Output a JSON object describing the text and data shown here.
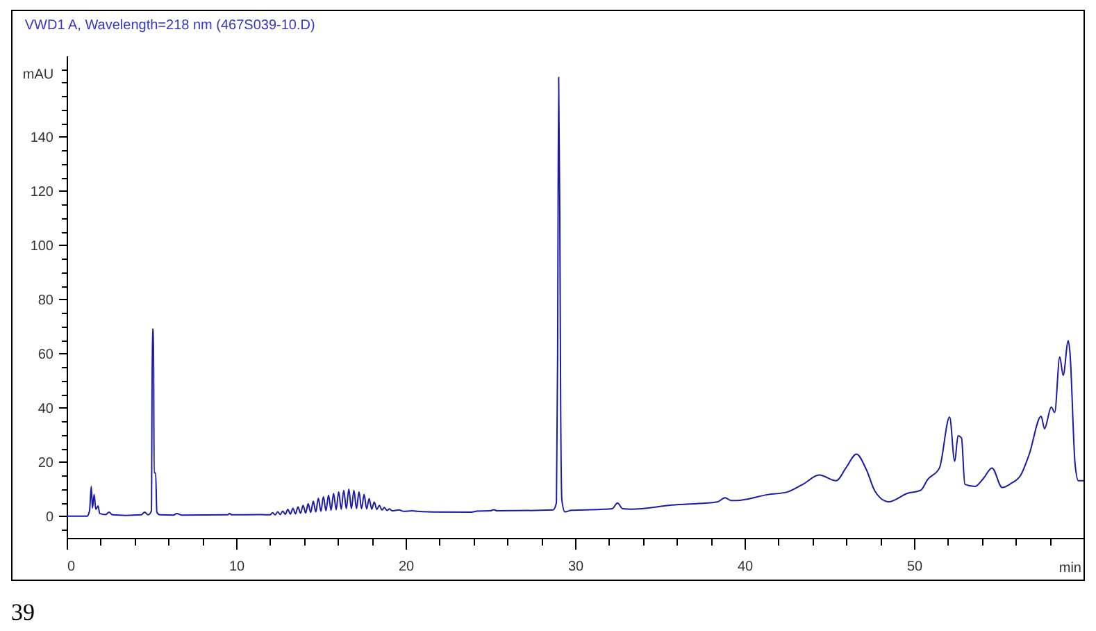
{
  "chart_data": {
    "type": "line",
    "title": "VWD1 A, Wavelength=218 nm (467S039-10.D)",
    "xlabel": "min",
    "ylabel": "mAU",
    "annotations": [
      "39"
    ],
    "x": [
      0,
      1.2,
      1.35,
      1.45,
      1.52,
      1.62,
      1.72,
      1.85,
      1.95,
      2.3,
      2.5,
      2.7,
      3.5,
      4.4,
      4.6,
      4.8,
      5.0,
      5.06,
      5.12,
      5.16,
      5.25,
      5.32,
      5.5,
      6.3,
      6.5,
      6.8,
      9.5,
      9.6,
      9.75,
      11.5,
      12.0,
      12.15,
      12.3,
      12.45,
      12.6,
      12.75,
      12.9,
      13.05,
      13.2,
      13.35,
      13.5,
      13.65,
      13.8,
      13.95,
      14.1,
      14.25,
      14.4,
      14.55,
      14.7,
      14.85,
      15.0,
      15.15,
      15.3,
      15.45,
      15.6,
      15.75,
      15.9,
      16.05,
      16.2,
      16.35,
      16.5,
      16.65,
      16.8,
      16.95,
      17.1,
      17.25,
      17.4,
      17.55,
      17.7,
      17.85,
      18.0,
      18.15,
      18.3,
      18.45,
      18.6,
      18.75,
      18.9,
      19.05,
      19.2,
      19.6,
      19.9,
      20.4,
      20.7,
      21.3,
      23.9,
      24.2,
      25.0,
      25.2,
      25.4,
      28.7,
      28.9,
      28.97,
      29.03,
      29.1,
      29.15,
      29.22,
      29.4,
      29.8,
      31.5,
      32.2,
      32.5,
      32.8,
      33.3,
      35.7,
      38.4,
      38.85,
      39.2,
      39.5,
      41.4,
      42.5,
      43.5,
      44.4,
      45.4,
      46.0,
      46.6,
      47.2,
      47.7,
      48.5,
      49.6,
      50.4,
      50.8,
      51.5,
      52.1,
      52.4,
      52.6,
      52.8,
      53.0,
      53.6,
      54.1,
      54.6,
      55.2,
      55.7,
      56.3,
      56.8,
      57.5,
      57.7,
      58.1,
      58.3,
      58.6,
      58.8,
      59.1,
      59.2,
      59.5,
      59.7,
      60.0
    ],
    "series": [
      {
        "color": "#1a1aa6",
        "values": [
          0,
          0,
          2,
          11,
          3,
          8,
          2.5,
          3.8,
          1,
          0.6,
          1.5,
          0.5,
          0.3,
          0.5,
          1.5,
          0.5,
          2,
          69,
          69,
          16,
          16,
          1.5,
          0.5,
          0.4,
          1,
          0.4,
          0.5,
          1,
          0.5,
          0.6,
          0.5,
          1.3,
          0.5,
          1.6,
          0.6,
          1.9,
          0.7,
          2.5,
          0.8,
          2.9,
          0.9,
          3.4,
          1.1,
          4.0,
          1.2,
          4.6,
          1.4,
          5.5,
          1.6,
          6.6,
          1.8,
          7.2,
          2.0,
          7.8,
          2.2,
          8.4,
          2.4,
          9.0,
          2.6,
          9.6,
          2.8,
          10.0,
          2.8,
          9.6,
          2.8,
          9.0,
          2.8,
          8.0,
          2.7,
          6.5,
          2.6,
          5.2,
          2.5,
          4.0,
          2.3,
          3.2,
          2.1,
          2.7,
          2.0,
          2.3,
          1.8,
          2.0,
          1.8,
          1.6,
          1.5,
          1.9,
          2.0,
          2.4,
          2.0,
          2.3,
          5,
          60,
          162,
          108,
          40,
          6,
          1.6,
          2.2,
          2.5,
          2.8,
          4.9,
          2.8,
          2.6,
          4.1,
          5.3,
          6.8,
          5.8,
          5.8,
          8,
          8.9,
          12,
          15.2,
          13.1,
          18,
          22.9,
          17,
          9.2,
          5.3,
          8.4,
          9.6,
          13.5,
          17.8,
          36.6,
          20.3,
          29.7,
          28.9,
          11.8,
          11,
          14,
          17.8,
          10.6,
          12,
          15.2,
          22.9,
          36.9,
          32.3,
          40.3,
          38.3,
          58.8,
          52,
          64.8,
          60.5,
          19.5,
          13.1,
          13.1
        ]
      }
    ],
    "xlim": [
      0,
      60
    ],
    "ylim": [
      -8,
      170
    ],
    "xticks": [
      0,
      {
        "value": 2,
        "label": null
      },
      {
        "value": 4,
        "label": null
      },
      {
        "value": 6,
        "label": null
      },
      {
        "value": 8,
        "label": null
      },
      10,
      {
        "value": 12,
        "label": null
      },
      {
        "value": 14,
        "label": null
      },
      {
        "value": 16,
        "label": null
      },
      {
        "value": 18,
        "label": null
      },
      20,
      {
        "value": 22,
        "label": null
      },
      {
        "value": 24,
        "label": null
      },
      {
        "value": 26,
        "label": null
      },
      {
        "value": 28,
        "label": null
      },
      30,
      {
        "value": 32,
        "label": null
      },
      {
        "value": 34,
        "label": null
      },
      {
        "value": 36,
        "label": null
      },
      {
        "value": 38,
        "label": null
      },
      40,
      {
        "value": 42,
        "label": null
      },
      {
        "value": 44,
        "label": null
      },
      {
        "value": 46,
        "label": null
      },
      {
        "value": 48,
        "label": null
      },
      50,
      {
        "value": 52,
        "label": null
      },
      {
        "value": 54,
        "label": null
      },
      {
        "value": 56,
        "label": null
      },
      {
        "value": 58,
        "label": null
      }
    ],
    "yticks": [
      {
        "value": -5,
        "label": null
      },
      0,
      {
        "value": 5,
        "label": null
      },
      {
        "value": 10,
        "label": null
      },
      {
        "value": 15,
        "label": null
      },
      20,
      {
        "value": 25,
        "label": null
      },
      {
        "value": 30,
        "label": null
      },
      {
        "value": 35,
        "label": null
      },
      40,
      {
        "value": 45,
        "label": null
      },
      {
        "value": 50,
        "label": null
      },
      {
        "value": 55,
        "label": null
      },
      60,
      {
        "value": 65,
        "label": null
      },
      {
        "value": 70,
        "label": null
      },
      {
        "value": 75,
        "label": null
      },
      80,
      {
        "value": 85,
        "label": null
      },
      {
        "value": 90,
        "label": null
      },
      {
        "value": 95,
        "label": null
      },
      100,
      {
        "value": 105,
        "label": null
      },
      {
        "value": 110,
        "label": null
      },
      {
        "value": 115,
        "label": null
      },
      120,
      {
        "value": 125,
        "label": null
      },
      {
        "value": 130,
        "label": null
      },
      {
        "value": 135,
        "label": null
      },
      140,
      {
        "value": 145,
        "label": null
      },
      {
        "value": 150,
        "label": null
      },
      {
        "value": 155,
        "label": null
      },
      {
        "value": 160,
        "label": null
      },
      {
        "value": 165,
        "label": null
      }
    ]
  }
}
